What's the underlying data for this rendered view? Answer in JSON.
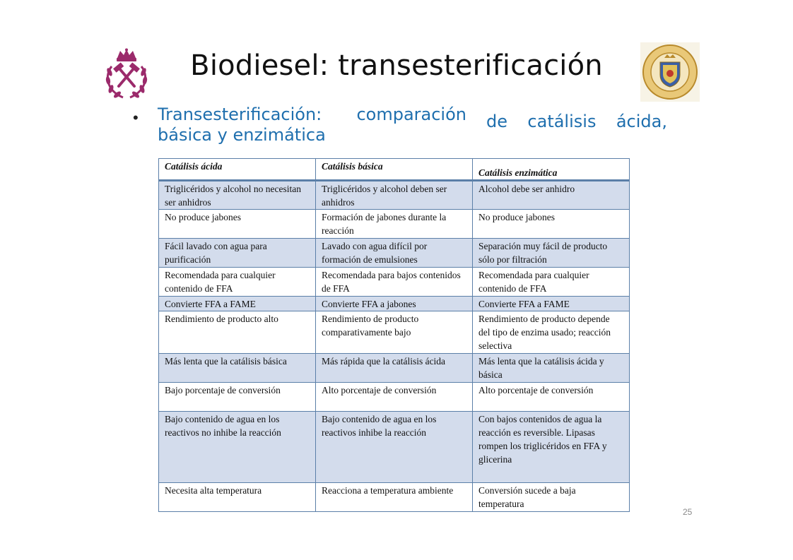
{
  "title": "Biodiesel: transesterificación",
  "bullet": {
    "line1": "Transesterificación: comparación",
    "line1b": "de catálisis ácida,",
    "line2": "básica y enzimática"
  },
  "table": {
    "headers": [
      "Catálisis ácida",
      "Catálisis básica",
      "Catálisis enzimática"
    ],
    "rows": [
      [
        "Triglicéridos y alcohol no necesitan ser anhidros",
        "Triglicéridos y alcohol deben ser anhidros",
        "Alcohol debe ser anhidro"
      ],
      [
        "No produce jabones",
        "Formación de jabones durante la reacción",
        "No produce jabones"
      ],
      [
        "Fácil lavado con agua para purificación",
        "Lavado con agua difícil por formación de emulsiones",
        "Separación muy fácil de producto sólo por filtración"
      ],
      [
        "Recomendada para cualquier contenido de FFA",
        "Recomendada para bajos contenidos de FFA",
        "Recomendada para cualquier contenido de FFA"
      ],
      [
        "Convierte FFA a FAME",
        "Convierte FFA a jabones",
        "Convierte FFA a FAME"
      ],
      [
        "Rendimiento de producto alto",
        "Rendimiento de producto comparativamente bajo",
        "Rendimiento de producto depende del tipo de enzima usado; reacción selectiva"
      ],
      [
        "Más lenta que la catálisis básica",
        "Más rápida que la catálisis ácida",
        "Más lenta que la catálisis ácida y básica"
      ],
      [
        "Bajo porcentaje de conversión",
        "Alto porcentaje de conversión",
        "Alto porcentaje de conversión"
      ],
      [
        "Bajo contenido de agua en los reactivos no inhibe la reacción",
        "Bajo contenido de agua en los reactivos  inhibe la reacción",
        "Con bajos contenidos de agua la reacción es reversible. Lipasas rompen los triglicéridos en FFA y glicerina"
      ],
      [
        "Necesita alta temperatura",
        "Reacciona a temperatura ambiente",
        "Conversión sucede a baja temperatura"
      ]
    ]
  },
  "page_number": "25",
  "colors": {
    "bullet_text": "#1f6fae",
    "row_shade": "#d3dcec",
    "table_border": "#5b7fa8",
    "logo_left": "#9b2a6b"
  }
}
